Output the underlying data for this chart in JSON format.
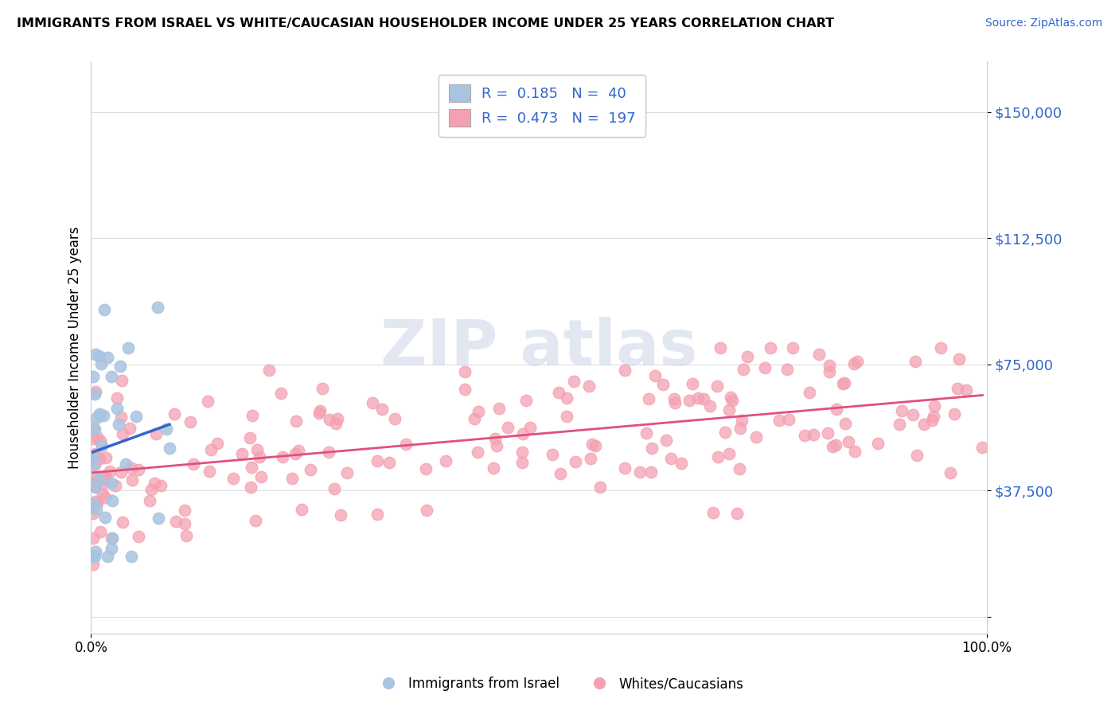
{
  "title": "IMMIGRANTS FROM ISRAEL VS WHITE/CAUCASIAN HOUSEHOLDER INCOME UNDER 25 YEARS CORRELATION CHART",
  "source": "Source: ZipAtlas.com",
  "ylabel": "Householder Income Under 25 years",
  "xlim": [
    0,
    100
  ],
  "ylim": [
    -5000,
    165000
  ],
  "yticks": [
    0,
    37500,
    75000,
    112500,
    150000
  ],
  "ytick_labels": [
    "",
    "$37,500",
    "$75,000",
    "$112,500",
    "$150,000"
  ],
  "xtick_labels": [
    "0.0%",
    "100.0%"
  ],
  "legend_r1": "R =  0.185",
  "legend_n1": "N =  40",
  "legend_r2": "R =  0.473",
  "legend_n2": "N =  197",
  "blue_color": "#a8c4e0",
  "blue_line_color": "#3366cc",
  "pink_color": "#f4a0b0",
  "pink_line_color": "#e05080",
  "blue_seed": 42,
  "pink_seed": 99
}
